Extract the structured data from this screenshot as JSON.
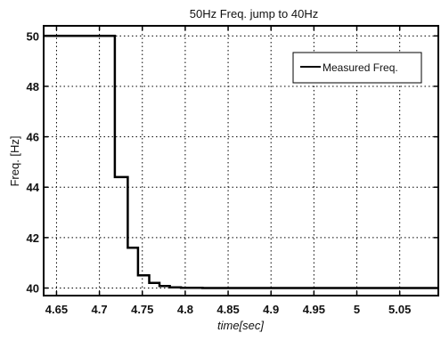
{
  "chart_data": {
    "type": "line",
    "title": "50Hz Freq. jump to 40Hz",
    "xlabel": "time[sec]",
    "ylabel": "Freq. [Hz]",
    "xlim": [
      4.635,
      5.095
    ],
    "ylim": [
      39.7,
      50.4
    ],
    "xticks": [
      4.65,
      4.7,
      4.75,
      4.8,
      4.85,
      4.9,
      4.95,
      5.0,
      5.05
    ],
    "xtick_labels": [
      "4.65",
      "4.7",
      "4.75",
      "4.8",
      "4.85",
      "4.9",
      "4.95",
      "5",
      "5.05"
    ],
    "yticks": [
      40,
      42,
      44,
      46,
      48,
      50
    ],
    "ytick_labels": [
      "40",
      "42",
      "44",
      "46",
      "48",
      "50"
    ],
    "grid": true,
    "legend_position": "top-right",
    "series": [
      {
        "name": "Measured Freq.",
        "color": "#000000",
        "step": true,
        "x": [
          4.635,
          4.718,
          4.718,
          4.733,
          4.733,
          4.745,
          4.745,
          4.758,
          4.758,
          4.77,
          4.77,
          4.782,
          4.782,
          4.795,
          4.795,
          4.82,
          4.82,
          5.095
        ],
        "y": [
          50.0,
          50.0,
          44.4,
          44.4,
          41.6,
          41.6,
          40.5,
          40.5,
          40.2,
          40.2,
          40.08,
          40.08,
          40.03,
          40.03,
          40.01,
          40.01,
          40.0,
          40.0
        ]
      }
    ]
  }
}
